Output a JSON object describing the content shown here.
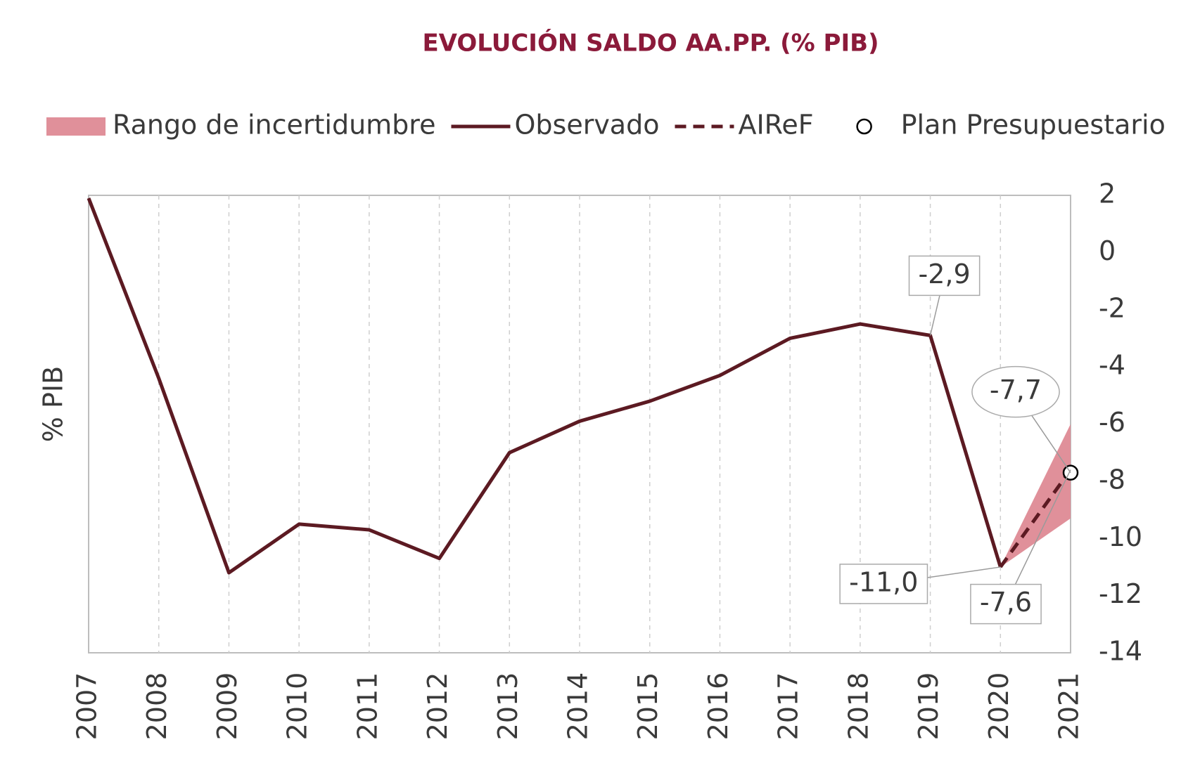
{
  "chart_data": {
    "type": "line",
    "title": "EVOLUCIÓN SALDO AA.PP. (% PIB)",
    "y_label": "% PIB",
    "categories": [
      "2007",
      "2008",
      "2009",
      "2010",
      "2011",
      "2012",
      "2013",
      "2014",
      "2015",
      "2016",
      "2017",
      "2018",
      "2019",
      "2020",
      "2021"
    ],
    "ylim": [
      -14,
      2
    ],
    "yticks": [
      2,
      0,
      -2,
      -4,
      -6,
      -8,
      -10,
      -12,
      -14
    ],
    "y_axis_side": "right",
    "x_grid": true,
    "series": [
      {
        "name": "Rango de incertidumbre",
        "style": "band",
        "color": "#e0909a",
        "upper": [
          null,
          null,
          null,
          null,
          null,
          null,
          null,
          null,
          null,
          null,
          null,
          null,
          null,
          -11.0,
          -6.0
        ],
        "lower": [
          null,
          null,
          null,
          null,
          null,
          null,
          null,
          null,
          null,
          null,
          null,
          null,
          null,
          -11.0,
          -9.3
        ]
      },
      {
        "name": "Observado",
        "style": "solid",
        "color": "#5c1a22",
        "values": [
          1.9,
          -4.4,
          -11.2,
          -9.5,
          -9.7,
          -10.7,
          -7.0,
          -5.9,
          -5.2,
          -4.3,
          -3.0,
          -2.5,
          -2.9,
          -11.0,
          null
        ],
        "value_labels": [
          null,
          null,
          null,
          null,
          null,
          null,
          null,
          null,
          null,
          null,
          null,
          null,
          "-2,9",
          "-11,0",
          null
        ]
      },
      {
        "name": "AIReF",
        "style": "dashed",
        "color": "#5c1a22",
        "values": [
          null,
          null,
          null,
          null,
          null,
          null,
          null,
          null,
          null,
          null,
          null,
          null,
          null,
          -11.0,
          -7.6
        ],
        "value_labels": [
          null,
          null,
          null,
          null,
          null,
          null,
          null,
          null,
          null,
          null,
          null,
          null,
          null,
          null,
          "-7,6"
        ]
      },
      {
        "name": "Plan Presupuestario",
        "style": "marker",
        "color": "#ffffff",
        "values": [
          null,
          null,
          null,
          null,
          null,
          null,
          null,
          null,
          null,
          null,
          null,
          null,
          null,
          null,
          -7.7
        ],
        "value_labels": [
          null,
          null,
          null,
          null,
          null,
          null,
          null,
          null,
          null,
          null,
          null,
          null,
          null,
          null,
          "-7,7"
        ]
      }
    ]
  }
}
